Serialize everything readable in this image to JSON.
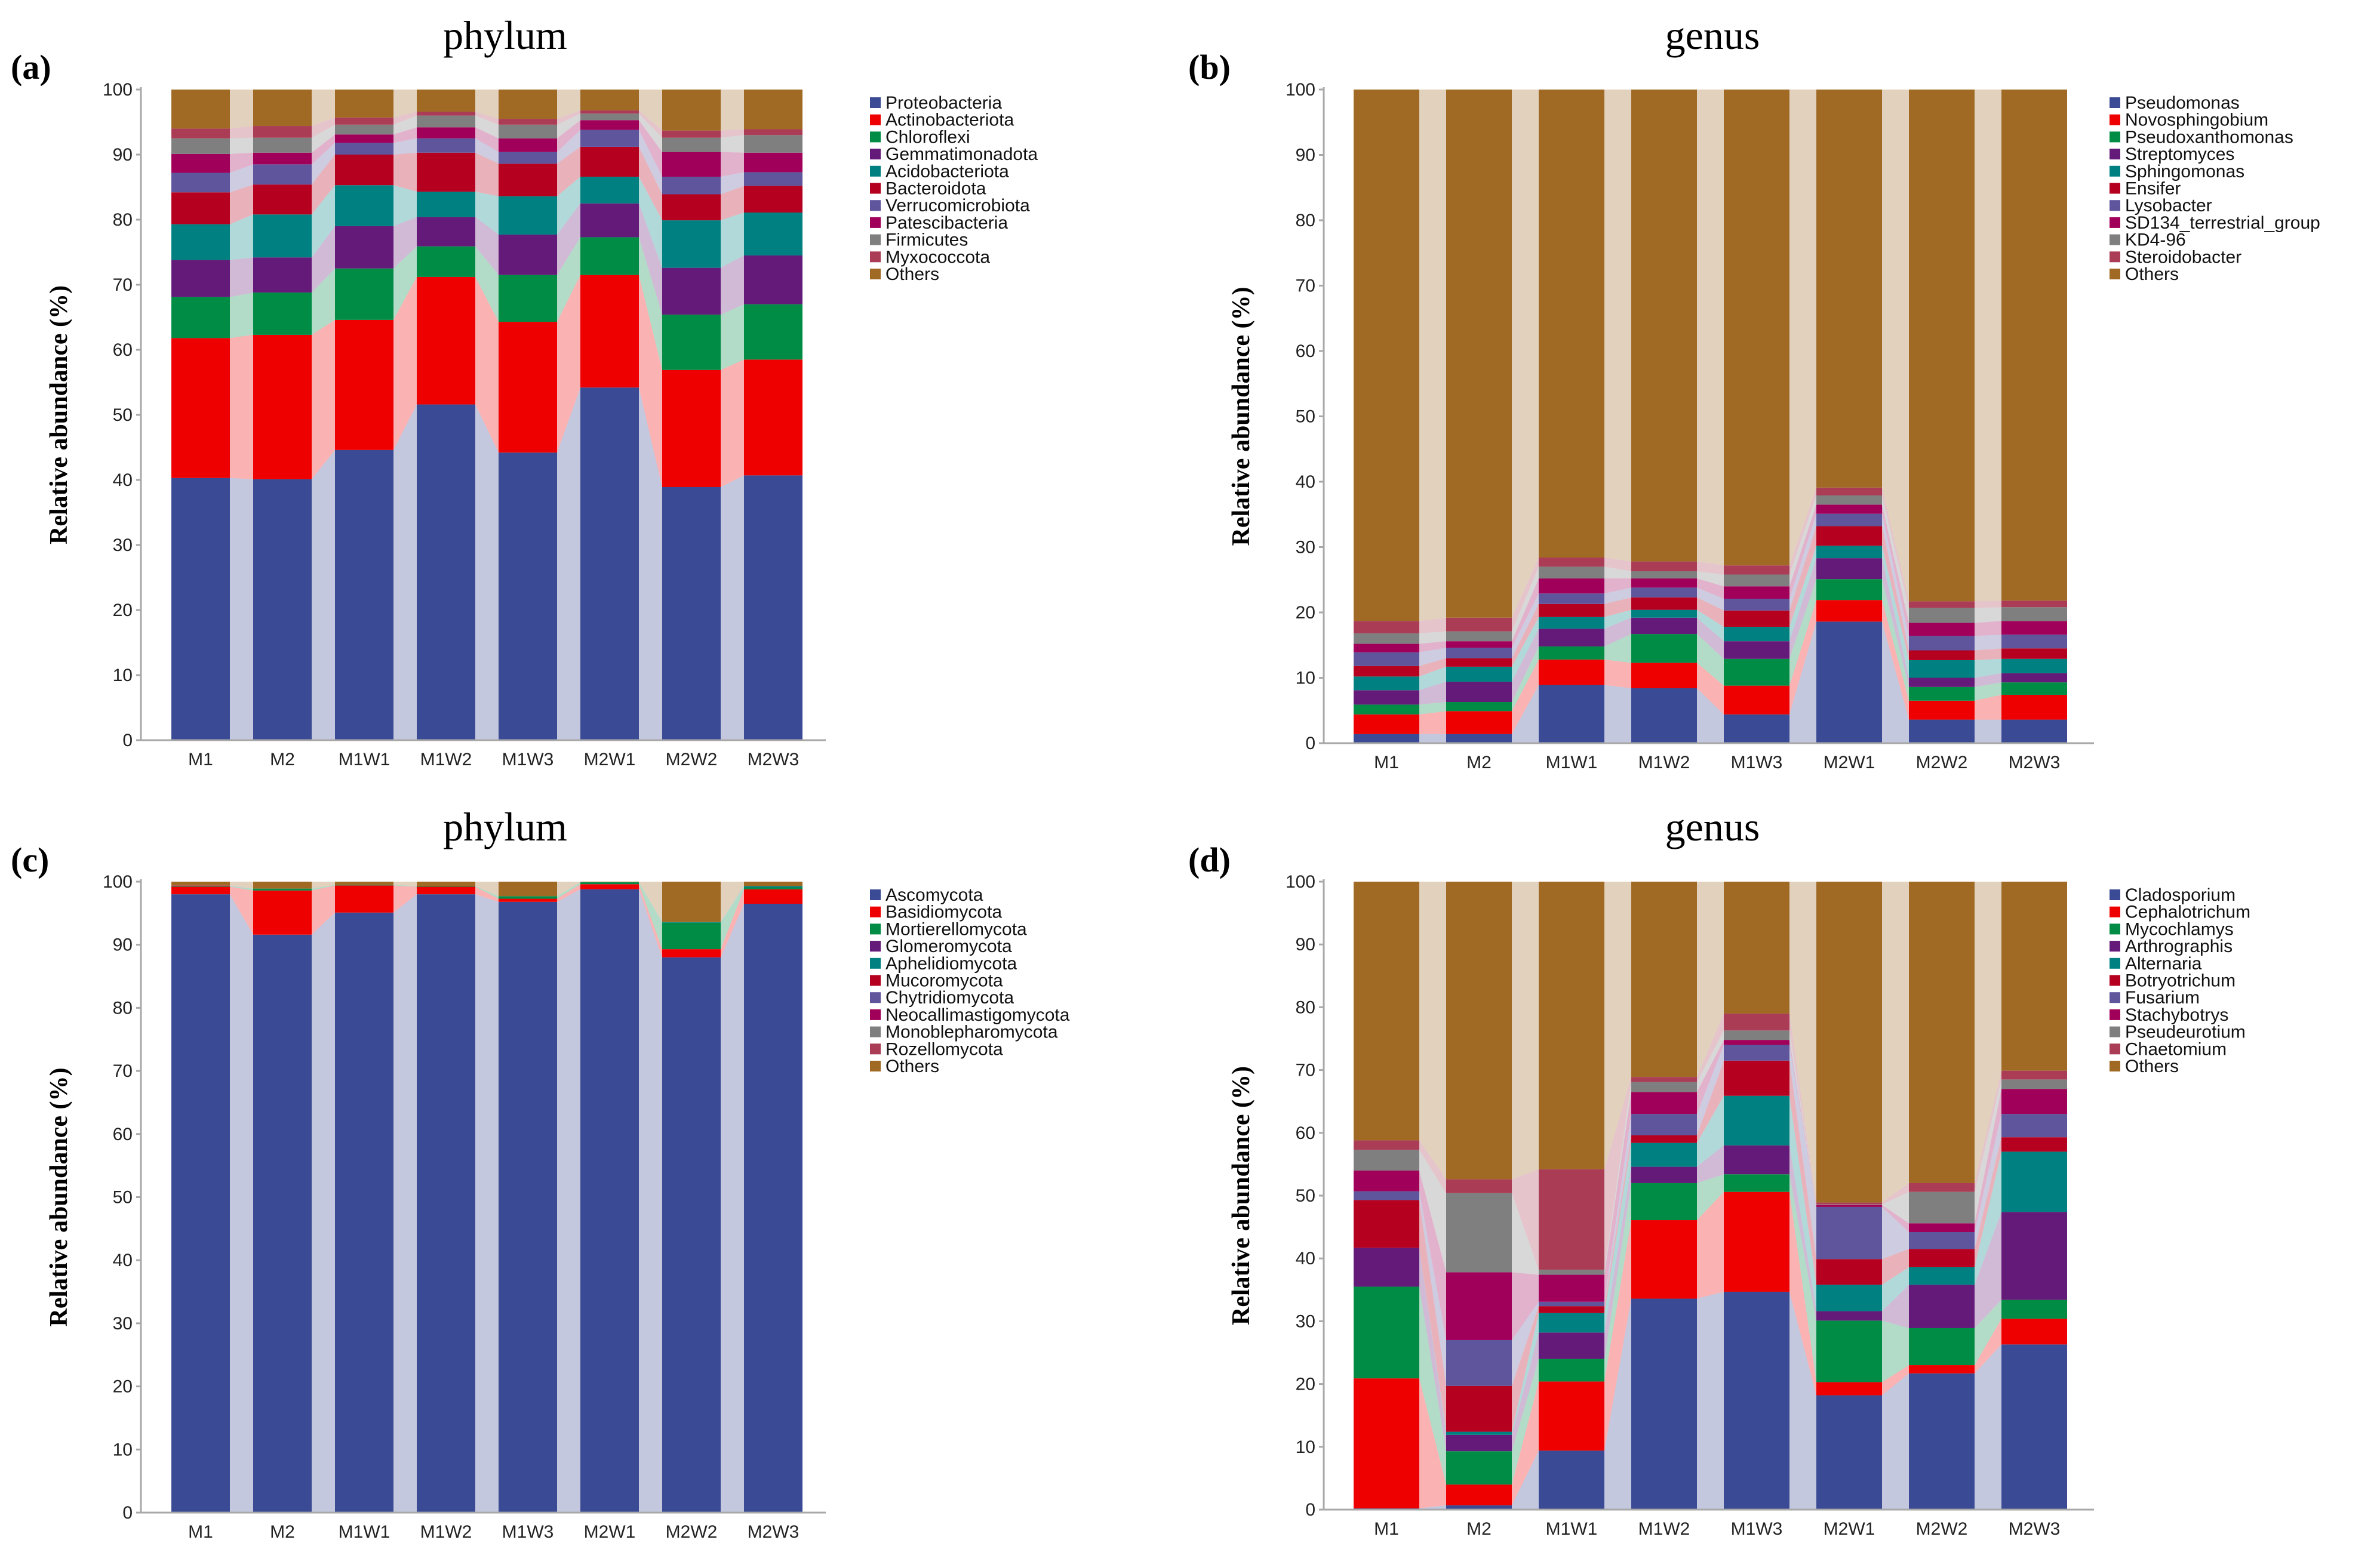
{
  "colors": [
    "#3a4a94",
    "#ee0000",
    "#008c45",
    "#641a78",
    "#008080",
    "#b5001f",
    "#5e559c",
    "#a0005a",
    "#7f7f7f",
    "#aa3d55",
    "#a06a25"
  ],
  "chart_data": [
    {
      "type": "bar",
      "stacked": true,
      "panel_label": "(a)",
      "title": "phylum",
      "ylabel": "Relative abundance  (%)",
      "xlabel": "",
      "ylim": [
        0,
        100
      ],
      "yticks": [
        "0",
        "10",
        "20",
        "30",
        "40",
        "50",
        "60",
        "70",
        "80",
        "90",
        "100"
      ],
      "legend_position": "right",
      "categories": [
        "M1",
        "M2",
        "M1W1",
        "M1W2",
        "M1W3",
        "M2W1",
        "M2W2",
        "M2W3"
      ],
      "series": [
        {
          "name": "Proteobacteria",
          "values": [
            40.3,
            40.1,
            44.6,
            51.6,
            44.2,
            54.2,
            38.9,
            40.7
          ]
        },
        {
          "name": "Actinobacteriota",
          "values": [
            21.5,
            22.2,
            20.0,
            19.6,
            20.1,
            17.3,
            18.0,
            17.8
          ]
        },
        {
          "name": "Chloroflexi",
          "values": [
            6.3,
            6.5,
            7.9,
            4.7,
            7.2,
            5.8,
            8.5,
            8.5
          ]
        },
        {
          "name": "Gemmatimonadota",
          "values": [
            5.7,
            5.4,
            6.5,
            4.5,
            6.2,
            5.2,
            7.2,
            7.5
          ]
        },
        {
          "name": "Acidobacteriota",
          "values": [
            5.5,
            6.6,
            6.3,
            3.9,
            5.9,
            4.1,
            7.3,
            6.6
          ]
        },
        {
          "name": "Bacteroidota",
          "values": [
            4.9,
            4.6,
            4.7,
            6.0,
            5.0,
            4.6,
            4.0,
            4.1
          ]
        },
        {
          "name": "Verrucomicrobiota",
          "values": [
            3.0,
            3.1,
            1.8,
            2.2,
            1.8,
            2.6,
            2.7,
            2.1
          ]
        },
        {
          "name": "Patescibacteria",
          "values": [
            2.9,
            1.8,
            1.3,
            1.7,
            2.1,
            1.5,
            3.8,
            3.0
          ]
        },
        {
          "name": "Firmicutes",
          "values": [
            2.4,
            2.3,
            1.5,
            1.8,
            2.1,
            1.0,
            2.2,
            2.7
          ]
        },
        {
          "name": "Myxococcota",
          "values": [
            1.5,
            1.8,
            1.1,
            0.6,
            0.9,
            0.5,
            1.1,
            0.9
          ]
        },
        {
          "name": "Others",
          "values": [
            6.0,
            5.6,
            4.3,
            3.4,
            4.5,
            3.2,
            6.3,
            6.1
          ]
        }
      ]
    },
    {
      "type": "bar",
      "stacked": true,
      "panel_label": "(b)",
      "title": "genus",
      "ylabel": "Relative abundance  (%)",
      "xlabel": "",
      "ylim": [
        0,
        100
      ],
      "yticks": [
        "0",
        "10",
        "20",
        "30",
        "40",
        "50",
        "60",
        "70",
        "80",
        "90",
        "100"
      ],
      "legend_position": "right",
      "categories": [
        "M1",
        "M2",
        "M1W1",
        "M1W2",
        "M1W3",
        "M2W1",
        "M2W2",
        "M2W3"
      ],
      "series": [
        {
          "name": "Pseudomonas",
          "values": [
            1.4,
            1.4,
            8.9,
            8.4,
            4.4,
            18.6,
            3.6,
            3.6
          ]
        },
        {
          "name": "Novosphingobium",
          "values": [
            3.0,
            3.5,
            3.9,
            3.9,
            4.4,
            3.3,
            2.9,
            3.8
          ]
        },
        {
          "name": "Pseudoxanthomonas",
          "values": [
            1.5,
            1.4,
            2.0,
            4.4,
            4.1,
            3.2,
            2.1,
            1.9
          ]
        },
        {
          "name": "Streptomyces",
          "values": [
            2.2,
            3.1,
            2.7,
            2.5,
            2.7,
            3.2,
            1.4,
            1.4
          ]
        },
        {
          "name": "Sphingomonas",
          "values": [
            2.1,
            2.3,
            1.8,
            1.2,
            2.2,
            1.9,
            2.7,
            2.2
          ]
        },
        {
          "name": "Ensifer",
          "values": [
            1.6,
            1.3,
            2.0,
            1.9,
            2.5,
            3.0,
            1.5,
            1.6
          ]
        },
        {
          "name": "Lysobacter",
          "values": [
            2.1,
            1.6,
            1.6,
            1.5,
            1.8,
            1.9,
            2.2,
            2.1
          ]
        },
        {
          "name": "SD134_terrestrial_group",
          "values": [
            1.3,
            1.0,
            2.3,
            1.4,
            1.9,
            1.4,
            2.0,
            2.1
          ]
        },
        {
          "name": "KD4-96",
          "values": [
            1.6,
            1.5,
            1.8,
            1.1,
            1.8,
            1.4,
            2.3,
            2.1
          ]
        },
        {
          "name": "Steroidobacter",
          "values": [
            1.9,
            2.1,
            1.4,
            1.5,
            1.4,
            1.2,
            1.0,
            1.0
          ]
        },
        {
          "name": "Others",
          "values": [
            81.3,
            80.8,
            71.6,
            72.2,
            72.8,
            60.9,
            78.3,
            78.2
          ]
        }
      ]
    },
    {
      "type": "bar",
      "stacked": true,
      "panel_label": "(c)",
      "title": "phylum",
      "ylabel": "Relative abundance  (%)",
      "xlabel": "",
      "ylim": [
        0,
        100
      ],
      "yticks": [
        "0",
        "10",
        "20",
        "30",
        "40",
        "50",
        "60",
        "70",
        "80",
        "90",
        "100"
      ],
      "legend_position": "right",
      "categories": [
        "M1",
        "M2",
        "M1W1",
        "M1W2",
        "M1W3",
        "M2W1",
        "M2W2",
        "M2W3"
      ],
      "series": [
        {
          "name": "Ascomycota",
          "values": [
            98.0,
            91.6,
            95.1,
            98.0,
            96.8,
            98.8,
            88.0,
            96.5
          ]
        },
        {
          "name": "Basidiomycota",
          "values": [
            1.2,
            7.0,
            4.3,
            1.2,
            0.5,
            0.8,
            1.3,
            2.3
          ]
        },
        {
          "name": "Mortierellomycota",
          "values": [
            0.1,
            0.3,
            0.1,
            0.1,
            0.4,
            0.3,
            4.2,
            0.3
          ]
        },
        {
          "name": "Glomeromycota",
          "values": [
            0,
            0,
            0,
            0,
            0,
            0,
            0,
            0
          ]
        },
        {
          "name": "Aphelidiomycota",
          "values": [
            0,
            0,
            0,
            0,
            0,
            0,
            0.1,
            0.2
          ]
        },
        {
          "name": "Mucoromycota",
          "values": [
            0,
            0,
            0,
            0,
            0,
            0,
            0,
            0
          ]
        },
        {
          "name": "Chytridiomycota",
          "values": [
            0,
            0,
            0,
            0,
            0,
            0,
            0,
            0
          ]
        },
        {
          "name": "Neocallimastigomycota",
          "values": [
            0,
            0,
            0,
            0,
            0,
            0,
            0,
            0
          ]
        },
        {
          "name": "Monoblepharomycota",
          "values": [
            0,
            0,
            0,
            0,
            0,
            0,
            0,
            0
          ]
        },
        {
          "name": "Rozellomycota",
          "values": [
            0.1,
            0,
            0,
            0,
            0,
            0,
            0,
            0
          ]
        },
        {
          "name": "Others",
          "values": [
            0.6,
            1.1,
            0.5,
            0.7,
            2.3,
            0.1,
            6.4,
            0.7
          ]
        }
      ]
    },
    {
      "type": "bar",
      "stacked": true,
      "panel_label": "(d)",
      "title": "genus",
      "ylabel": "Relative abundance  (%)",
      "xlabel": "",
      "ylim": [
        0,
        100
      ],
      "yticks": [
        "0",
        "10",
        "20",
        "30",
        "40",
        "50",
        "60",
        "70",
        "80",
        "90",
        "100"
      ],
      "legend_position": "right",
      "categories": [
        "M1",
        "M2",
        "M1W1",
        "M1W2",
        "M1W3",
        "M2W1",
        "M2W2",
        "M2W3"
      ],
      "series": [
        {
          "name": "Cladosporium",
          "values": [
            0.2,
            0.7,
            9.4,
            33.6,
            34.7,
            18.2,
            21.7,
            26.3
          ]
        },
        {
          "name": "Cephalotrichum",
          "values": [
            20.7,
            3.3,
            11.0,
            12.5,
            15.9,
            2.1,
            1.3,
            4.1
          ]
        },
        {
          "name": "Mycochlamys",
          "values": [
            14.6,
            5.3,
            3.6,
            5.9,
            2.8,
            9.8,
            5.9,
            3.0
          ]
        },
        {
          "name": "Arthrographis",
          "values": [
            6.2,
            2.6,
            4.2,
            2.6,
            4.6,
            1.5,
            6.9,
            14.0
          ]
        },
        {
          "name": "Alternaria",
          "values": [
            0,
            0.5,
            3.1,
            3.8,
            7.9,
            4.2,
            2.8,
            9.6
          ]
        },
        {
          "name": "Botryotrichum",
          "values": [
            7.6,
            7.3,
            1.1,
            1.2,
            5.6,
            4.1,
            2.9,
            2.3
          ]
        },
        {
          "name": "Fusarium",
          "values": [
            1.4,
            7.3,
            0.7,
            3.4,
            2.5,
            8.3,
            2.7,
            3.7
          ]
        },
        {
          "name": "Stachybotrys",
          "values": [
            3.3,
            10.8,
            4.3,
            3.5,
            0.8,
            0.3,
            1.4,
            4.0
          ]
        },
        {
          "name": "Pseudeurotium",
          "values": [
            3.3,
            12.6,
            0.8,
            1.6,
            1.5,
            0.1,
            5.0,
            1.5
          ]
        },
        {
          "name": "Chaetomium",
          "values": [
            1.5,
            2.2,
            16.0,
            0.8,
            2.7,
            0.3,
            1.4,
            1.4
          ]
        },
        {
          "name": "Others",
          "values": [
            41.2,
            47.4,
            45.8,
            31.1,
            21.0,
            51.1,
            48.0,
            30.1
          ]
        }
      ]
    }
  ]
}
